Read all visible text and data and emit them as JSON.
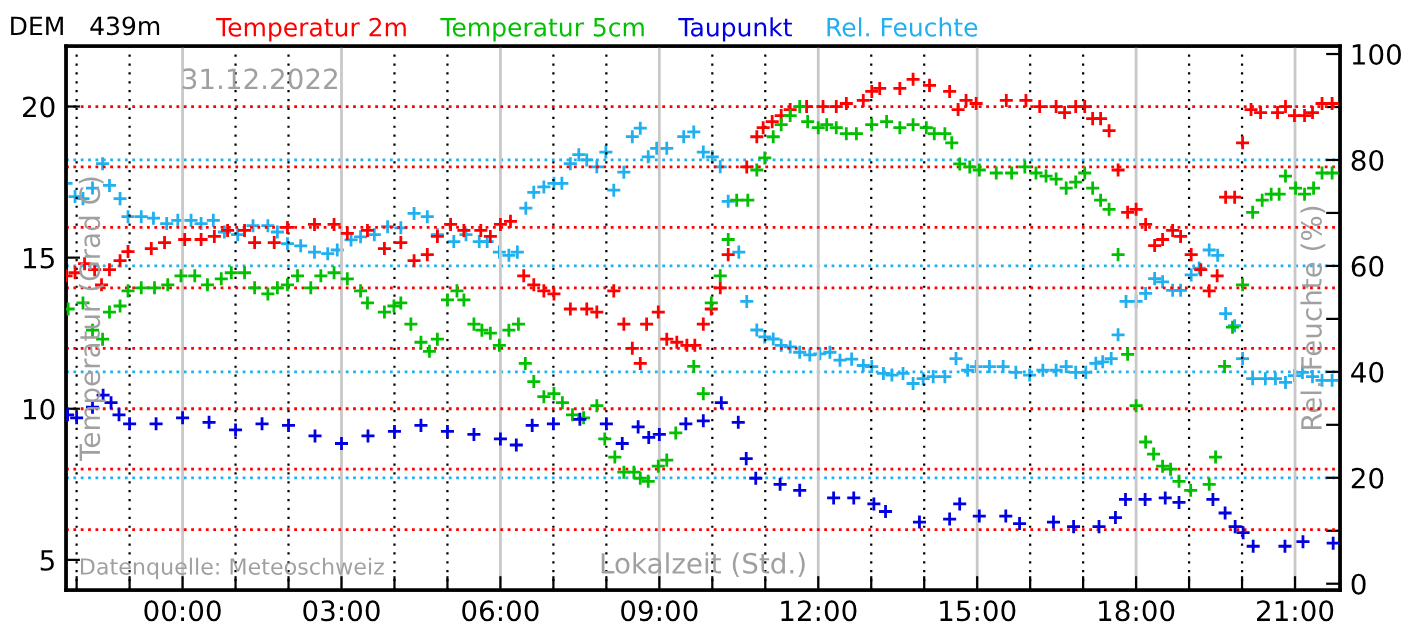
{
  "chart_data": {
    "type": "scatter",
    "title": "DEM   439m",
    "xlabel": "Lokalzeit (Std.)",
    "ylabel": "Temperatur (Grad C)",
    "y2label": "Rel. Feuchte (%)",
    "annotations": [
      "31.12.2022",
      "Datenquelle: Meteoschweiz"
    ],
    "marker": "cross",
    "legend": "top",
    "grid": "x",
    "xlim": [
      -2.2,
      21.85
    ],
    "ylim": [
      4,
      22
    ],
    "y2lim": [
      -1.2,
      101.5
    ],
    "xticks": [
      {
        "value": -2,
        "label": null
      },
      {
        "value": -1,
        "label": null
      },
      {
        "value": 0,
        "label": "00:00"
      },
      {
        "value": 1,
        "label": null
      },
      {
        "value": 2,
        "label": null
      },
      {
        "value": 3,
        "label": "03:00"
      },
      {
        "value": 4,
        "label": null
      },
      {
        "value": 5,
        "label": null
      },
      {
        "value": 6,
        "label": "06:00"
      },
      {
        "value": 7,
        "label": null
      },
      {
        "value": 8,
        "label": null
      },
      {
        "value": 9,
        "label": "09:00"
      },
      {
        "value": 10,
        "label": null
      },
      {
        "value": 11,
        "label": null
      },
      {
        "value": 12,
        "label": "12:00"
      },
      {
        "value": 13,
        "label": null
      },
      {
        "value": 14,
        "label": null
      },
      {
        "value": 15,
        "label": "15:00"
      },
      {
        "value": 16,
        "label": null
      },
      {
        "value": 17,
        "label": null
      },
      {
        "value": 18,
        "label": "18:00"
      },
      {
        "value": 19,
        "label": null
      },
      {
        "value": 20,
        "label": null
      },
      {
        "value": 21,
        "label": "21:00"
      }
    ],
    "yticks": [
      5,
      10,
      15,
      20
    ],
    "y2ticks": [
      0,
      {
        "value": 10,
        "label": null
      },
      20,
      {
        "value": 30,
        "label": null
      },
      40,
      {
        "value": 50,
        "label": null
      },
      60,
      {
        "value": 70,
        "label": null
      },
      80,
      {
        "value": 90,
        "label": null
      },
      100
    ],
    "ref_lines": [
      {
        "axis": "y",
        "value": 6,
        "color": "#ff0000",
        "line_style": "dotted"
      },
      {
        "axis": "y",
        "value": 8,
        "color": "#ff0000",
        "line_style": "dotted"
      },
      {
        "axis": "y",
        "value": 10,
        "color": "#ff0000",
        "line_style": "dotted"
      },
      {
        "axis": "y",
        "value": 12,
        "color": "#ff0000",
        "line_style": "dotted"
      },
      {
        "axis": "y",
        "value": 14,
        "color": "#ff0000",
        "line_style": "dotted"
      },
      {
        "axis": "y",
        "value": 16,
        "color": "#ff0000",
        "line_style": "dotted"
      },
      {
        "axis": "y",
        "value": 18,
        "color": "#ff0000",
        "line_style": "dotted"
      },
      {
        "axis": "y",
        "value": 20,
        "color": "#ff0000",
        "line_style": "dotted"
      },
      {
        "axis": "y2",
        "value": 20,
        "color": "#20b0f0",
        "line_style": "dotted"
      },
      {
        "axis": "y2",
        "value": 40,
        "color": "#20b0f0",
        "line_style": "dotted"
      },
      {
        "axis": "y2",
        "value": 60,
        "color": "#20b0f0",
        "line_style": "dotted"
      },
      {
        "axis": "y2",
        "value": 80,
        "color": "#20b0f0",
        "line_style": "dotted"
      }
    ],
    "series": [
      {
        "name": "Temperatur 2m",
        "color": "#ff0000",
        "x": [
          -2.2,
          -2.03,
          -1.85,
          -1.66,
          -1.53,
          -1.38,
          -1.18,
          -1.03,
          -0.59,
          -0.34,
          0.04,
          0.35,
          0.6,
          0.85,
          1.17,
          1.36,
          1.73,
          1.98,
          2.49,
          2.86,
          3.11,
          3.49,
          3.81,
          4.12,
          4.37,
          4.62,
          4.81,
          5.06,
          5.31,
          5.63,
          5.81,
          6.0,
          6.19,
          6.44,
          6.63,
          6.82,
          7.01,
          7.32,
          7.63,
          7.82,
          8.14,
          8.33,
          8.49,
          8.64,
          8.76,
          8.98,
          9.14,
          9.33,
          9.52,
          9.67,
          9.83,
          9.98,
          10.15,
          10.3,
          10.65,
          10.84,
          10.96,
          11.13,
          11.3,
          11.47,
          11.78,
          12.09,
          12.34,
          12.53,
          12.85,
          13.01,
          13.16,
          13.54,
          13.79,
          14.1,
          14.48,
          14.64,
          14.79,
          14.98,
          15.55,
          15.92,
          16.18,
          16.49,
          16.65,
          16.86,
          17.03,
          17.18,
          17.33,
          17.49,
          17.66,
          17.84,
          18.0,
          18.18,
          18.35,
          18.5,
          18.69,
          18.84,
          19.04,
          19.22,
          19.38,
          19.53,
          19.69,
          19.86,
          20.01,
          20.17,
          20.35,
          20.67,
          20.82,
          20.99,
          21.18,
          21.33,
          21.51,
          21.7
        ],
        "values": [
          14.4,
          14.5,
          14.8,
          14.6,
          14.1,
          14.6,
          14.9,
          15.2,
          15.3,
          15.5,
          15.6,
          15.6,
          15.7,
          15.9,
          15.9,
          15.5,
          15.5,
          16.0,
          16.1,
          16.1,
          15.8,
          15.9,
          15.3,
          15.5,
          14.9,
          15.1,
          15.7,
          16.1,
          15.9,
          15.9,
          15.7,
          16.1,
          16.2,
          14.4,
          14.1,
          13.9,
          13.8,
          13.3,
          13.3,
          13.2,
          13.9,
          12.8,
          12.0,
          11.5,
          12.8,
          13.2,
          12.3,
          12.2,
          12.1,
          12.1,
          12.8,
          13.3,
          14.0,
          15.1,
          18.0,
          19.0,
          19.3,
          19.5,
          19.7,
          19.9,
          20.0,
          20.0,
          20.0,
          20.1,
          20.2,
          20.5,
          20.6,
          20.6,
          20.9,
          20.7,
          20.5,
          19.9,
          20.2,
          20.1,
          20.2,
          20.2,
          20.0,
          20.0,
          19.8,
          20.0,
          20.0,
          19.6,
          19.6,
          19.2,
          17.9,
          16.5,
          16.6,
          16.1,
          15.4,
          15.6,
          15.9,
          15.7,
          15.1,
          14.6,
          13.9,
          14.4,
          17.0,
          17.0,
          18.8,
          19.9,
          19.8,
          19.8,
          20.0,
          19.7,
          19.7,
          19.8,
          20.1,
          20.1
        ]
      },
      {
        "name": "Temperatur 5cm",
        "color": "#00c000",
        "x": [
          -2.16,
          -1.88,
          -1.7,
          -1.51,
          -1.38,
          -1.18,
          -1.03,
          -0.78,
          -0.53,
          -0.28,
          -0.03,
          0.23,
          0.47,
          0.73,
          0.92,
          1.17,
          1.36,
          1.61,
          1.79,
          1.98,
          2.17,
          2.42,
          2.61,
          2.86,
          3.11,
          3.36,
          3.49,
          3.81,
          3.99,
          4.12,
          4.31,
          4.5,
          4.66,
          4.81,
          5.0,
          5.18,
          5.31,
          5.5,
          5.65,
          5.81,
          5.98,
          6.16,
          6.34,
          6.47,
          6.63,
          6.82,
          7.01,
          7.17,
          7.36,
          7.57,
          7.82,
          7.97,
          8.16,
          8.33,
          8.52,
          8.64,
          8.79,
          8.98,
          9.14,
          9.31,
          9.65,
          9.83,
          9.98,
          10.15,
          10.3,
          10.46,
          10.67,
          10.84,
          10.99,
          11.15,
          11.3,
          11.47,
          11.65,
          11.8,
          12.0,
          12.16,
          12.34,
          12.53,
          12.72,
          13.01,
          13.29,
          13.54,
          13.79,
          14.04,
          14.19,
          14.39,
          14.52,
          14.67,
          14.86,
          15.04,
          15.36,
          15.65,
          15.9,
          16.11,
          16.3,
          16.49,
          16.68,
          16.86,
          17.03,
          17.18,
          17.33,
          17.49,
          17.66,
          17.84,
          18.0,
          18.18,
          18.33,
          18.5,
          18.65,
          18.81,
          19.03,
          19.38,
          19.5,
          19.67,
          19.82,
          20.01,
          20.2,
          20.38,
          20.55,
          20.7,
          20.82,
          21.01,
          21.18,
          21.35,
          21.51,
          21.7
        ],
        "values": [
          13.3,
          13.5,
          12.6,
          12.3,
          13.2,
          13.4,
          13.9,
          14.0,
          14.0,
          14.1,
          14.4,
          14.4,
          14.1,
          14.3,
          14.5,
          14.5,
          14.0,
          13.8,
          14.0,
          14.1,
          14.4,
          14.0,
          14.4,
          14.5,
          14.3,
          13.9,
          13.5,
          13.2,
          13.4,
          13.5,
          12.8,
          12.2,
          11.9,
          12.3,
          13.6,
          13.9,
          13.6,
          12.8,
          12.6,
          12.5,
          12.1,
          12.6,
          12.8,
          11.5,
          10.9,
          10.4,
          10.5,
          10.2,
          9.8,
          9.7,
          10.1,
          9.0,
          8.4,
          7.9,
          7.9,
          7.7,
          7.6,
          8.1,
          8.3,
          9.2,
          11.4,
          10.5,
          13.5,
          14.4,
          15.6,
          16.9,
          16.9,
          17.9,
          18.3,
          19.0,
          19.4,
          19.7,
          20.0,
          19.5,
          19.3,
          19.4,
          19.3,
          19.1,
          19.1,
          19.4,
          19.5,
          19.3,
          19.4,
          19.3,
          19.1,
          19.1,
          18.8,
          18.1,
          18.0,
          17.9,
          17.8,
          17.8,
          18.0,
          17.8,
          17.7,
          17.6,
          17.3,
          17.5,
          17.8,
          17.3,
          16.9,
          16.6,
          15.1,
          11.8,
          10.1,
          8.9,
          8.5,
          8.1,
          8.0,
          7.6,
          7.3,
          7.5,
          8.4,
          11.4,
          12.7,
          14.1,
          16.5,
          16.9,
          17.1,
          17.1,
          17.7,
          17.3,
          17.1,
          17.3,
          17.8,
          17.8
        ]
      },
      {
        "name": "Taupunkt",
        "color": "#0000e0",
        "x": [
          -2.17,
          -2.0,
          -1.7,
          -1.5,
          -1.35,
          -1.2,
          -1.0,
          -0.5,
          0.0,
          0.5,
          1.0,
          1.5,
          2.0,
          2.5,
          3.0,
          3.5,
          4.0,
          4.5,
          5.0,
          5.5,
          6.0,
          6.3,
          6.6,
          7.0,
          7.5,
          8.0,
          8.3,
          8.6,
          8.8,
          9.0,
          9.5,
          9.83,
          10.17,
          10.49,
          10.64,
          10.82,
          11.28,
          11.65,
          12.29,
          12.67,
          13.05,
          13.27,
          13.91,
          14.48,
          14.67,
          15.04,
          15.54,
          15.8,
          16.44,
          16.82,
          17.3,
          17.61,
          17.8,
          18.17,
          18.55,
          18.81,
          19.45,
          19.68,
          19.87,
          20.02,
          20.21,
          20.81,
          21.15,
          21.72
        ],
        "values": [
          9.8,
          9.7,
          10.05,
          10.45,
          10.2,
          9.8,
          9.5,
          9.5,
          9.7,
          9.55,
          9.3,
          9.5,
          9.45,
          9.1,
          8.85,
          9.1,
          9.25,
          9.45,
          9.25,
          9.15,
          9.0,
          8.8,
          9.45,
          9.5,
          9.65,
          9.5,
          8.85,
          9.4,
          9.05,
          9.15,
          9.5,
          9.6,
          10.2,
          9.55,
          8.35,
          7.7,
          7.5,
          7.3,
          7.05,
          7.05,
          6.85,
          6.6,
          6.25,
          6.35,
          6.85,
          6.45,
          6.45,
          6.2,
          6.25,
          6.1,
          6.1,
          6.4,
          7.0,
          7.0,
          7.05,
          6.9,
          7.0,
          6.55,
          6.1,
          5.9,
          5.45,
          5.45,
          5.6,
          5.55
        ]
      },
      {
        "name": "Rel. Feuchte",
        "color": "#20b0f0",
        "axis": "y2",
        "x": [
          -2.2,
          -2.03,
          -1.88,
          -1.7,
          -1.51,
          -1.38,
          -1.18,
          -1.03,
          -0.78,
          -0.55,
          -0.3,
          -0.09,
          0.16,
          0.35,
          0.58,
          0.79,
          1.04,
          1.33,
          1.61,
          1.79,
          1.98,
          2.23,
          2.49,
          2.74,
          2.92,
          3.18,
          3.36,
          3.62,
          3.87,
          4.12,
          4.37,
          4.62,
          4.81,
          5.12,
          5.35,
          5.6,
          5.75,
          5.98,
          6.16,
          6.32,
          6.48,
          6.63,
          6.82,
          7.01,
          7.16,
          7.32,
          7.48,
          7.63,
          7.82,
          7.99,
          8.14,
          8.33,
          8.49,
          8.64,
          8.79,
          8.95,
          9.14,
          9.46,
          9.65,
          9.83,
          10.0,
          10.15,
          10.3,
          10.5,
          10.65,
          10.84,
          10.99,
          11.15,
          11.3,
          11.47,
          11.65,
          11.84,
          12.03,
          12.22,
          12.41,
          12.63,
          12.85,
          13.01,
          13.23,
          13.39,
          13.6,
          13.79,
          13.98,
          14.17,
          14.39,
          14.6,
          14.82,
          14.98,
          15.23,
          15.49,
          15.73,
          15.99,
          16.24,
          16.49,
          16.68,
          16.86,
          17.05,
          17.24,
          17.37,
          17.53,
          17.66,
          17.81,
          18.0,
          18.18,
          18.35,
          18.5,
          18.69,
          18.84,
          19.04,
          19.19,
          19.38,
          19.54,
          19.69,
          19.86,
          20.01,
          20.2,
          20.44,
          20.63,
          20.82,
          20.99,
          21.14,
          21.33,
          21.51,
          21.7
        ],
        "values": [
          75.6,
          73.1,
          72.7,
          74.7,
          79.3,
          75.2,
          72.7,
          69.3,
          69.3,
          69.0,
          68.0,
          68.6,
          68.6,
          68.0,
          68.6,
          66.4,
          65.9,
          67.6,
          67.6,
          66.4,
          64.2,
          63.8,
          62.6,
          62.3,
          63.0,
          64.9,
          65.5,
          65.9,
          67.4,
          67.2,
          69.9,
          69.3,
          65.9,
          64.6,
          65.9,
          64.6,
          64.6,
          62.6,
          62.0,
          62.6,
          70.9,
          73.9,
          74.9,
          75.6,
          75.6,
          79.3,
          81.0,
          80.0,
          78.7,
          81.5,
          74.3,
          77.7,
          84.4,
          86.0,
          80.6,
          82.2,
          82.2,
          84.4,
          85.3,
          81.5,
          80.6,
          78.7,
          72.2,
          62.6,
          53.3,
          47.9,
          46.6,
          46.2,
          45.0,
          44.7,
          43.7,
          43.2,
          43.4,
          43.7,
          42.2,
          42.4,
          41.2,
          41.0,
          39.7,
          39.4,
          39.7,
          37.8,
          38.7,
          39.1,
          39.1,
          42.5,
          40.3,
          41.0,
          41.0,
          41.0,
          39.9,
          39.4,
          40.3,
          40.3,
          41.0,
          39.9,
          39.9,
          41.6,
          41.9,
          42.5,
          47.0,
          53.3,
          53.3,
          54.8,
          57.6,
          57.0,
          55.4,
          55.4,
          58.3,
          59.6,
          63.0,
          62.0,
          51.0,
          48.7,
          42.5,
          38.7,
          38.7,
          38.7,
          38.0,
          39.3,
          39.9,
          39.1,
          38.4,
          38.4
        ]
      }
    ]
  }
}
